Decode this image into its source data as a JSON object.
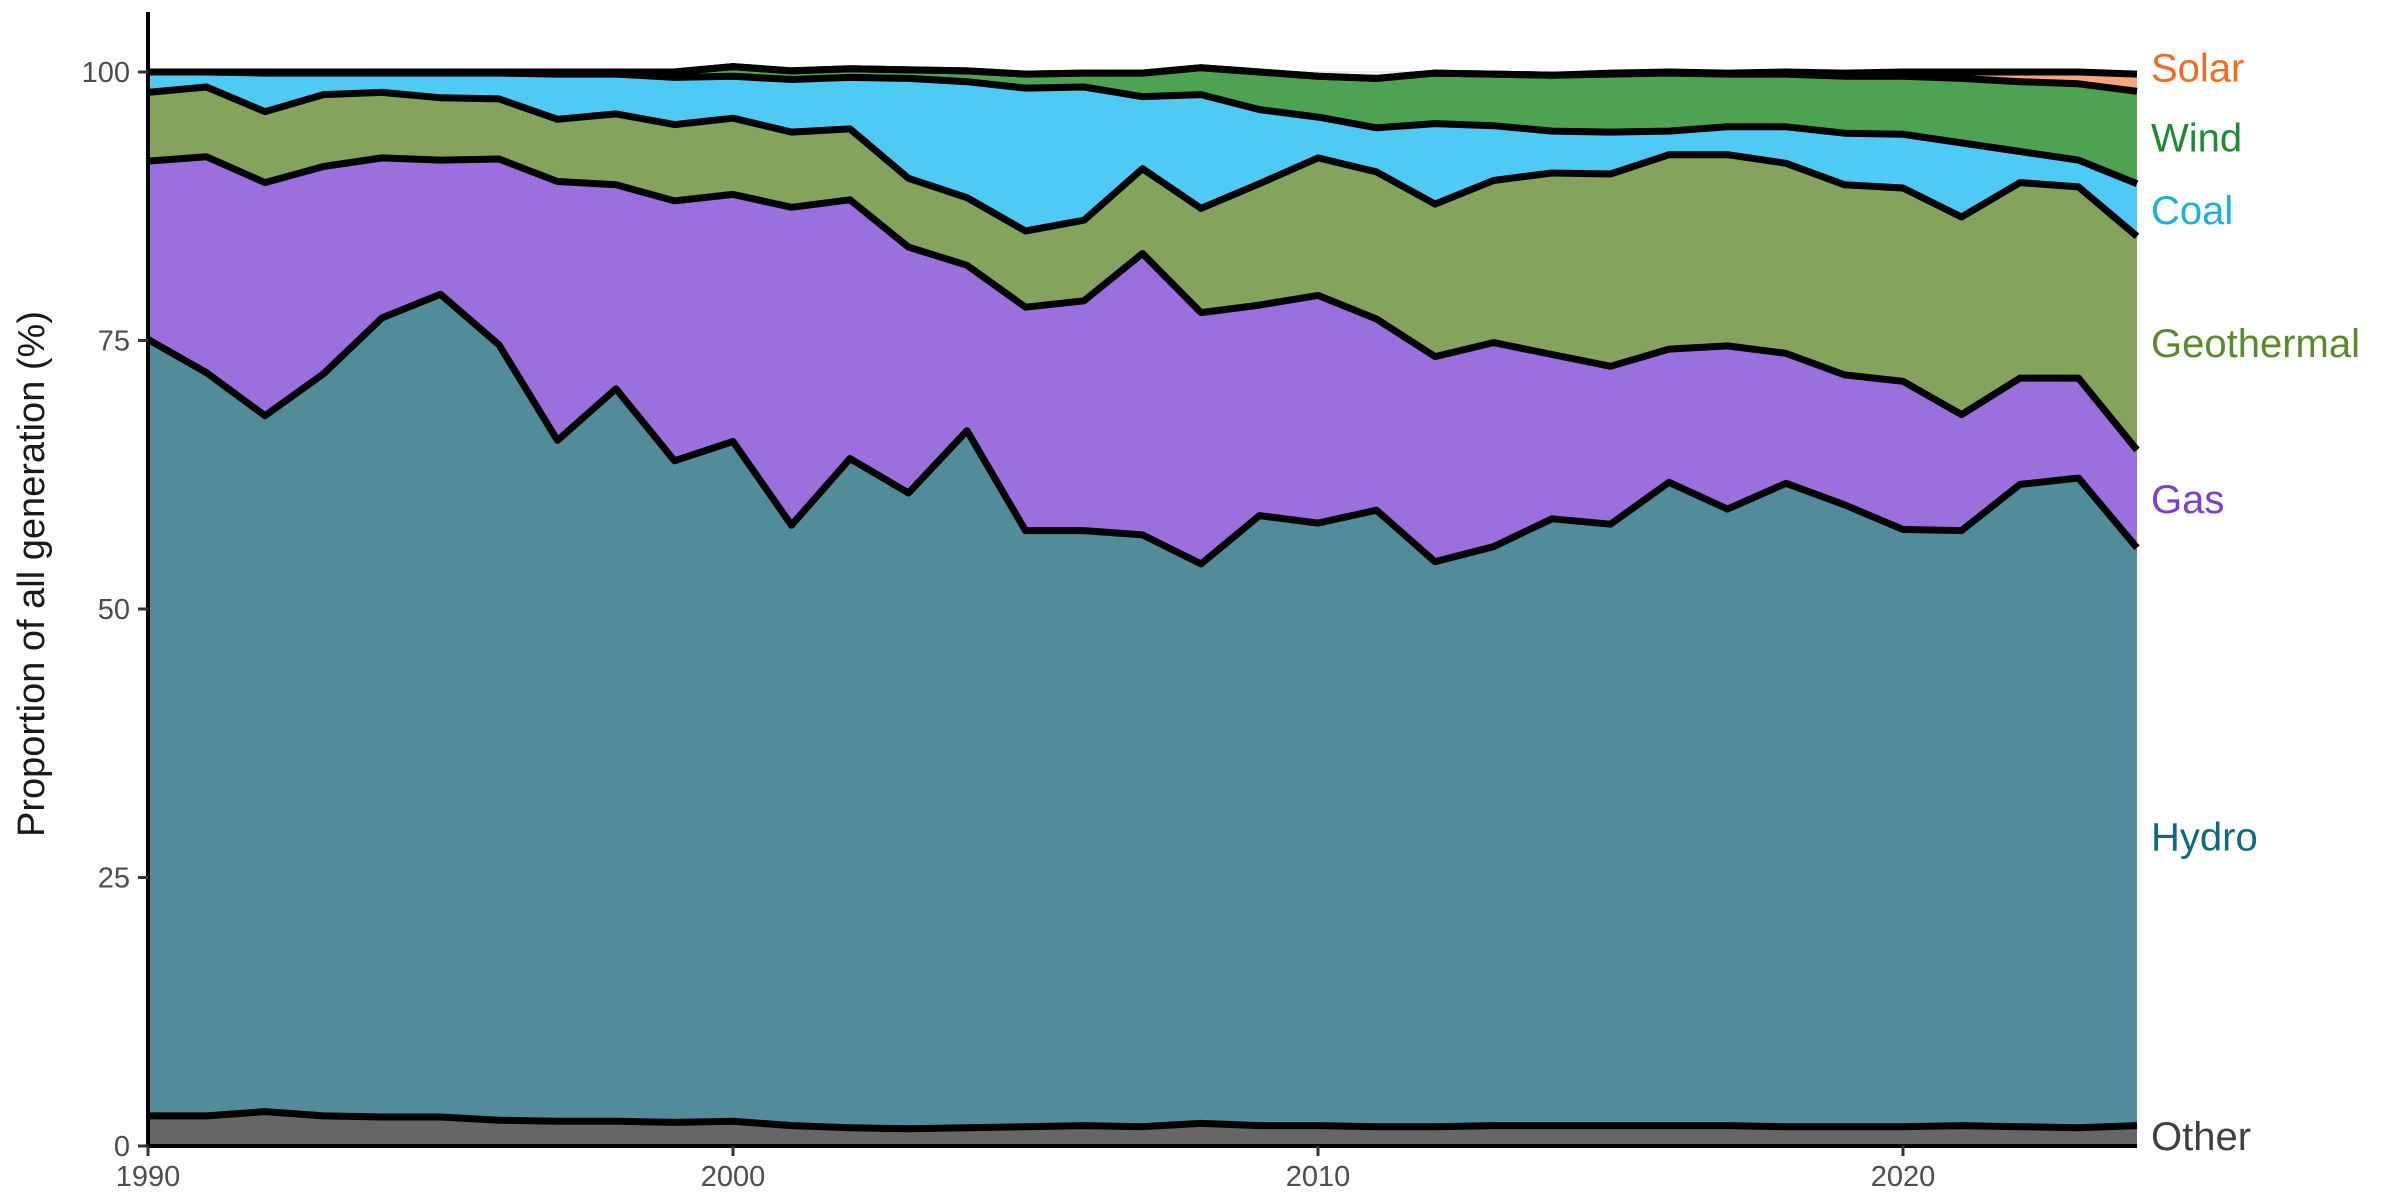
{
  "chart_data": {
    "type": "area",
    "title": "",
    "xlabel": "",
    "ylabel": "Proportion of all generation (%)",
    "xlim": [
      1990,
      2024
    ],
    "ylim": [
      0,
      100
    ],
    "stacked": true,
    "grid": "horizontal, very light",
    "legend": "direct labels at right end of areas",
    "x_ticks": [
      "1990",
      "2000",
      "2010",
      "2020"
    ],
    "y_ticks": [
      "0",
      "25",
      "50",
      "75",
      "100"
    ],
    "x": [
      1990,
      1991,
      1992,
      1993,
      1994,
      1995,
      1996,
      1997,
      1998,
      1999,
      2000,
      2001,
      2002,
      2003,
      2004,
      2005,
      2006,
      2007,
      2008,
      2009,
      2010,
      2011,
      2012,
      2013,
      2014,
      2015,
      2016,
      2017,
      2018,
      2019,
      2020,
      2021,
      2022,
      2023,
      2024
    ],
    "series": [
      {
        "name": "Other",
        "color": "#666666",
        "label_color": "#404040",
        "values": [
          2.8,
          2.8,
          3.2,
          2.8,
          2.7,
          2.7,
          2.4,
          2.3,
          2.3,
          2.2,
          2.3,
          1.9,
          1.7,
          1.6,
          1.7,
          1.8,
          1.9,
          1.8,
          2.1,
          1.9,
          1.9,
          1.8,
          1.8,
          1.9,
          1.9,
          1.9,
          1.9,
          1.9,
          1.8,
          1.8,
          1.8,
          1.9,
          1.8,
          1.7,
          1.9
        ]
      },
      {
        "name": "Hydro",
        "color": "#528b9a",
        "label_color": "#0d6b7a",
        "values": [
          72.3,
          69.2,
          64.8,
          69.1,
          74.4,
          76.6,
          72.2,
          63.4,
          68.2,
          61.6,
          63.3,
          55.9,
          62.3,
          59.2,
          64.9,
          55.5,
          55.4,
          55.1,
          52.1,
          56.8,
          56.1,
          57.4,
          52.6,
          53.9,
          56.5,
          56.0,
          59.9,
          57.4,
          59.9,
          57.9,
          55.6,
          55.4,
          59.8,
          60.5,
          53.8
        ]
      },
      {
        "name": "Gas",
        "color": "#9b6fdd",
        "label_color": "#7b3fcc",
        "values": [
          16.6,
          20.1,
          21.7,
          19.3,
          14.9,
          12.5,
          17.3,
          24.1,
          19.0,
          24.2,
          23.0,
          29.6,
          24.1,
          22.9,
          15.4,
          20.8,
          21.4,
          26.2,
          23.4,
          19.6,
          21.2,
          17.8,
          19.1,
          19.0,
          15.3,
          14.7,
          12.4,
          15.2,
          12.1,
          12.1,
          13.8,
          10.8,
          9.9,
          9.3,
          9.1
        ]
      },
      {
        "name": "Geothermal",
        "color": "#84a35c",
        "label_color": "#5a8a2a",
        "values": [
          6.4,
          6.5,
          6.6,
          6.7,
          6.1,
          5.8,
          5.6,
          5.8,
          6.6,
          7.1,
          7.1,
          7.0,
          6.6,
          6.4,
          6.3,
          7.1,
          7.5,
          7.9,
          9.7,
          11.3,
          12.8,
          13.7,
          14.2,
          15.1,
          16.9,
          17.9,
          18.1,
          17.8,
          17.7,
          17.7,
          18.0,
          18.4,
          18.2,
          17.8,
          19.9
        ]
      },
      {
        "name": "Coal",
        "color": "#4ecaf5",
        "label_color": "#1ab0e0",
        "values": [
          1.9,
          1.4,
          3.6,
          2.0,
          1.8,
          2.3,
          2.4,
          4.2,
          3.7,
          4.4,
          3.9,
          4.9,
          4.8,
          9.3,
          10.8,
          13.3,
          12.4,
          6.7,
          10.6,
          6.9,
          3.8,
          4.1,
          7.5,
          5.1,
          3.9,
          3.9,
          2.2,
          2.6,
          3.4,
          4.8,
          5.0,
          6.9,
          2.9,
          2.5,
          4.9
        ]
      },
      {
        "name": "Wind",
        "color": "#4ea352",
        "label_color": "#1e8a32",
        "values": [
          0.0,
          0.0,
          0.1,
          0.1,
          0.1,
          0.1,
          0.1,
          0.2,
          0.2,
          0.5,
          0.9,
          0.8,
          0.8,
          0.8,
          1.0,
          1.3,
          1.3,
          2.2,
          2.5,
          3.5,
          3.8,
          4.6,
          4.7,
          4.8,
          5.2,
          5.4,
          5.4,
          4.9,
          4.9,
          5.3,
          5.4,
          6.0,
          6.5,
          7.1,
          8.6
        ]
      },
      {
        "name": "Solar",
        "color": "#f7a481",
        "label_color": "#f26b1e",
        "values": [
          0.0,
          0.0,
          0.0,
          0.0,
          0.0,
          0.0,
          0.0,
          0.0,
          0.0,
          0.0,
          0.0,
          0.0,
          0.0,
          0.0,
          0.0,
          0.0,
          0.0,
          0.0,
          0.0,
          0.0,
          0.0,
          0.0,
          0.0,
          0.0,
          0.0,
          0.1,
          0.1,
          0.1,
          0.2,
          0.3,
          0.4,
          0.6,
          0.9,
          1.1,
          1.6
        ]
      }
    ]
  }
}
